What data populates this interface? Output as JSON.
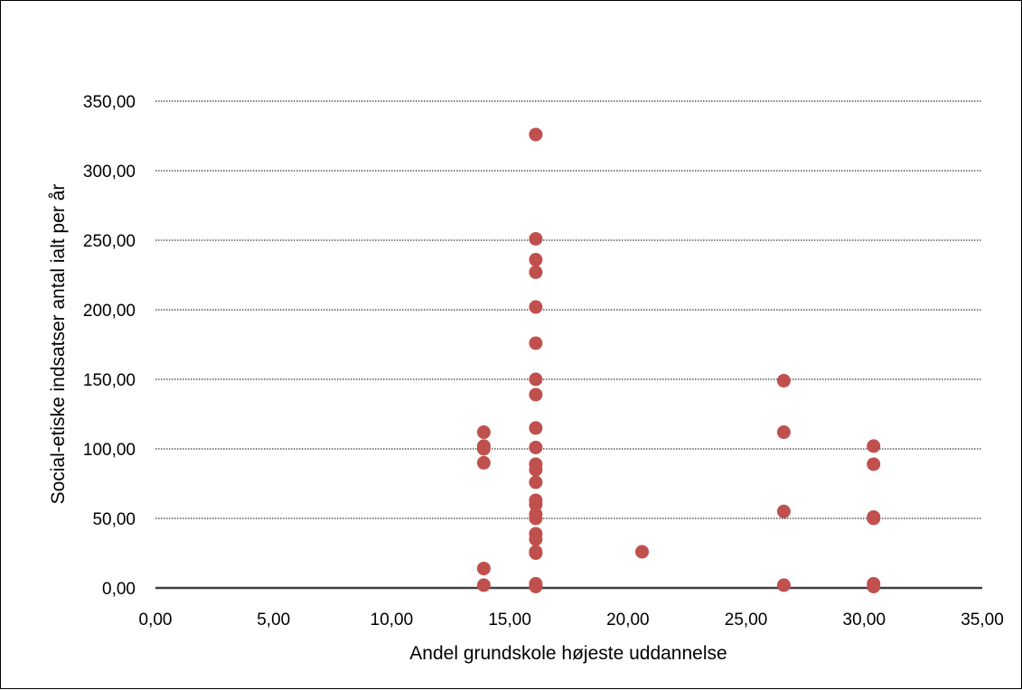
{
  "chart_data": {
    "type": "scatter",
    "title": "",
    "xlabel": "Andel grundskole højeste uddannelse",
    "ylabel": "Social-etiske indsatser antal ialt per år",
    "xlim": [
      0,
      35
    ],
    "ylim": [
      0,
      350
    ],
    "x_ticks": [
      "0,00",
      "5,00",
      "10,00",
      "15,00",
      "20,00",
      "25,00",
      "30,00",
      "35,00"
    ],
    "y_ticks": [
      "0,00",
      "50,00",
      "100,00",
      "150,00",
      "200,00",
      "250,00",
      "300,00",
      "350,00"
    ],
    "grid": "horizontal dotted",
    "legend": "none",
    "marker_color": "#C0504D",
    "points": [
      {
        "x": 13.9,
        "y": 112
      },
      {
        "x": 13.9,
        "y": 102
      },
      {
        "x": 13.9,
        "y": 100
      },
      {
        "x": 13.9,
        "y": 90
      },
      {
        "x": 13.9,
        "y": 14
      },
      {
        "x": 13.9,
        "y": 2
      },
      {
        "x": 16.1,
        "y": 326
      },
      {
        "x": 16.1,
        "y": 251
      },
      {
        "x": 16.1,
        "y": 236
      },
      {
        "x": 16.1,
        "y": 227
      },
      {
        "x": 16.1,
        "y": 202
      },
      {
        "x": 16.1,
        "y": 176
      },
      {
        "x": 16.1,
        "y": 150
      },
      {
        "x": 16.1,
        "y": 139
      },
      {
        "x": 16.1,
        "y": 115
      },
      {
        "x": 16.1,
        "y": 101
      },
      {
        "x": 16.1,
        "y": 89
      },
      {
        "x": 16.1,
        "y": 85
      },
      {
        "x": 16.1,
        "y": 76
      },
      {
        "x": 16.1,
        "y": 63
      },
      {
        "x": 16.1,
        "y": 60
      },
      {
        "x": 16.1,
        "y": 53
      },
      {
        "x": 16.1,
        "y": 50
      },
      {
        "x": 16.1,
        "y": 39
      },
      {
        "x": 16.1,
        "y": 35
      },
      {
        "x": 16.1,
        "y": 26
      },
      {
        "x": 16.1,
        "y": 25
      },
      {
        "x": 16.1,
        "y": 3
      },
      {
        "x": 16.1,
        "y": 1
      },
      {
        "x": 20.6,
        "y": 26
      },
      {
        "x": 26.6,
        "y": 149
      },
      {
        "x": 26.6,
        "y": 112
      },
      {
        "x": 26.6,
        "y": 55
      },
      {
        "x": 26.6,
        "y": 2
      },
      {
        "x": 30.4,
        "y": 102
      },
      {
        "x": 30.4,
        "y": 89
      },
      {
        "x": 30.4,
        "y": 51
      },
      {
        "x": 30.4,
        "y": 50
      },
      {
        "x": 30.4,
        "y": 3
      },
      {
        "x": 30.4,
        "y": 1
      }
    ]
  }
}
